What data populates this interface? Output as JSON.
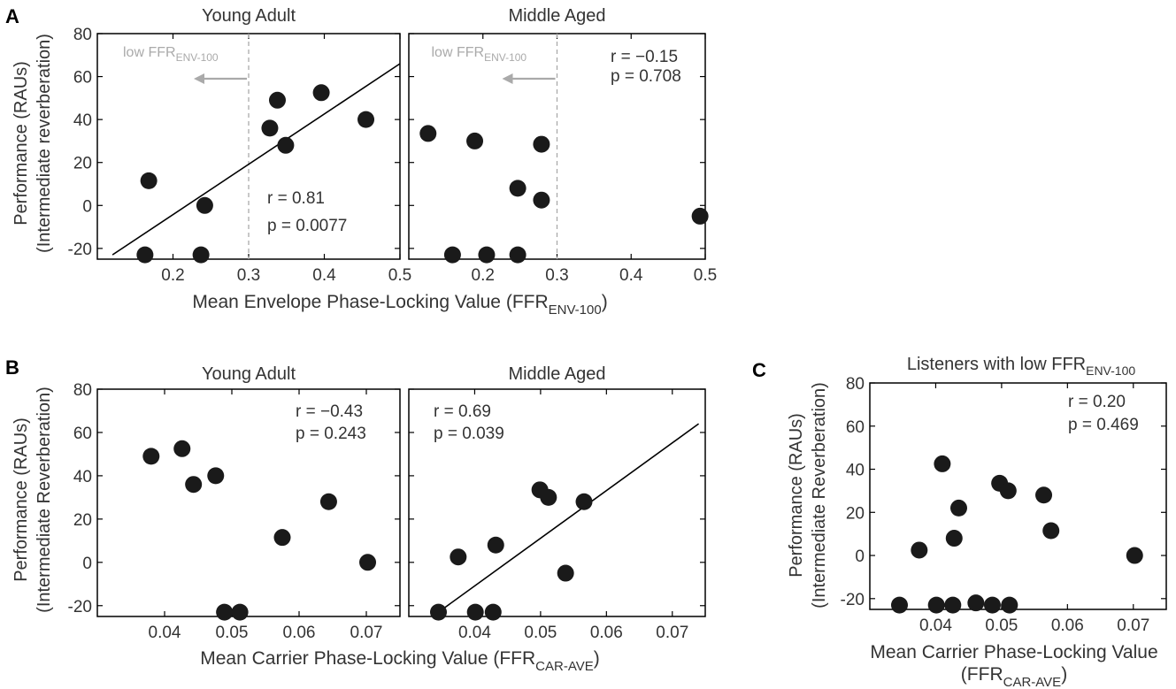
{
  "panel_letters": {
    "a": "A",
    "b": "B",
    "c": "C"
  },
  "colors": {
    "marker": "#1a1a1a",
    "axis": "#000000",
    "text": "#333333",
    "guide": "#aaaaaa"
  },
  "figure_labels": {
    "ylabel_line1": "Performance (RAUs)",
    "ylabel_A": "(Intermediate reverberation)",
    "ylabel_B": "(Intermediate Reverberation)",
    "ylabel_C": "(Intermediate Reverberation)",
    "xlabel_A_main": "Mean Envelope Phase-Locking Value (FFR",
    "xlabel_A_sub": "ENV-100",
    "xlabel_A_close": ")",
    "xlabel_B_main": "Mean Carrier Phase-Locking Value (FFR",
    "xlabel_B_sub": "CAR-AVE",
    "xlabel_B_close": ")",
    "xlabel_C_line1": "Mean Carrier Phase-Locking Value",
    "xlabel_C_main": "(FFR",
    "xlabel_C_sub": "CAR-AVE",
    "xlabel_C_close": ")",
    "low_ffr_main": "low FFR",
    "low_ffr_sub": "ENV-100",
    "title_C_main": "Listeners with low FFR",
    "title_C_sub": "ENV-100"
  },
  "chart_data": [
    {
      "id": "A1",
      "type": "scatter",
      "title": "Young Adult",
      "xlim": [
        0.1,
        0.5
      ],
      "ylim": [
        -25,
        80
      ],
      "xticks": [
        "0.2",
        "0.3",
        "0.4",
        "0.5"
      ],
      "yticks": [
        "80",
        "60",
        "40",
        "20",
        "0",
        "-20"
      ],
      "threshold_x": 0.3,
      "x": [
        0.163,
        0.168,
        0.237,
        0.242,
        0.328,
        0.338,
        0.349,
        0.396,
        0.455
      ],
      "y": [
        -23,
        11.5,
        -23,
        0,
        36,
        49,
        28,
        52.5,
        40
      ],
      "fit": {
        "x": [
          0.12,
          0.5
        ],
        "y": [
          -23,
          66
        ]
      },
      "stats": [
        "r = 0.81",
        "p = 0.0077"
      ]
    },
    {
      "id": "A2",
      "type": "scatter",
      "title": "Middle Aged",
      "xlim": [
        0.1,
        0.5
      ],
      "ylim": [
        -25,
        80
      ],
      "xticks": [
        "0.2",
        "0.3",
        "0.4",
        "0.5"
      ],
      "yticks": [],
      "threshold_x": 0.3,
      "x": [
        0.126,
        0.159,
        0.189,
        0.205,
        0.247,
        0.247,
        0.279,
        0.279,
        0.493
      ],
      "y": [
        33.5,
        -23,
        30,
        -23,
        -23,
        8,
        28.5,
        2.5,
        -5
      ],
      "fit": null,
      "stats": [
        "r = −0.15",
        "p = 0.708"
      ]
    },
    {
      "id": "B1",
      "type": "scatter",
      "title": "Young Adult",
      "xlim": [
        0.03,
        0.075
      ],
      "ylim": [
        -25,
        80
      ],
      "xticks": [
        "0.04",
        "0.05",
        "0.06",
        "0.07"
      ],
      "yticks": [
        "80",
        "60",
        "40",
        "20",
        "0",
        "-20"
      ],
      "x": [
        0.038,
        0.0426,
        0.0443,
        0.0476,
        0.0489,
        0.0512,
        0.0575,
        0.0644,
        0.0702
      ],
      "y": [
        49,
        52.5,
        36,
        40,
        -23,
        -23,
        11.5,
        28,
        0
      ],
      "fit": null,
      "stats": [
        "r = −0.43",
        "p = 0.243"
      ]
    },
    {
      "id": "B2",
      "type": "scatter",
      "title": "Middle Aged",
      "xlim": [
        0.03,
        0.075
      ],
      "ylim": [
        -25,
        80
      ],
      "xticks": [
        "0.04",
        "0.05",
        "0.06",
        "0.07"
      ],
      "yticks": [],
      "x": [
        0.0345,
        0.0375,
        0.0401,
        0.0428,
        0.0432,
        0.0499,
        0.0512,
        0.0538,
        0.0566
      ],
      "y": [
        -23,
        2.5,
        -23,
        -23,
        8,
        33.5,
        30,
        -5,
        28
      ],
      "fit": {
        "x": [
          0.0345,
          0.074
        ],
        "y": [
          -23,
          64
        ]
      },
      "stats": [
        "r = 0.69",
        "p = 0.039"
      ]
    },
    {
      "id": "C",
      "type": "scatter",
      "title": "Listeners with low FFR ENV-100",
      "xlim": [
        0.03,
        0.075
      ],
      "ylim": [
        -25,
        80
      ],
      "xticks": [
        "0.04",
        "0.05",
        "0.06",
        "0.07"
      ],
      "yticks": [
        "80",
        "60",
        "40",
        "20",
        "0",
        "-20"
      ],
      "x": [
        0.0345,
        0.0375,
        0.0401,
        0.041,
        0.0426,
        0.0428,
        0.0435,
        0.0461,
        0.0486,
        0.0497,
        0.051,
        0.0512,
        0.0564,
        0.0575,
        0.0702
      ],
      "y": [
        -23,
        2.5,
        -23,
        42.5,
        -23,
        8,
        22,
        -22,
        -23,
        33.5,
        30,
        -23,
        28,
        11.5,
        0
      ],
      "fit": null,
      "stats": [
        "r = 0.20",
        "p = 0.469"
      ]
    }
  ]
}
